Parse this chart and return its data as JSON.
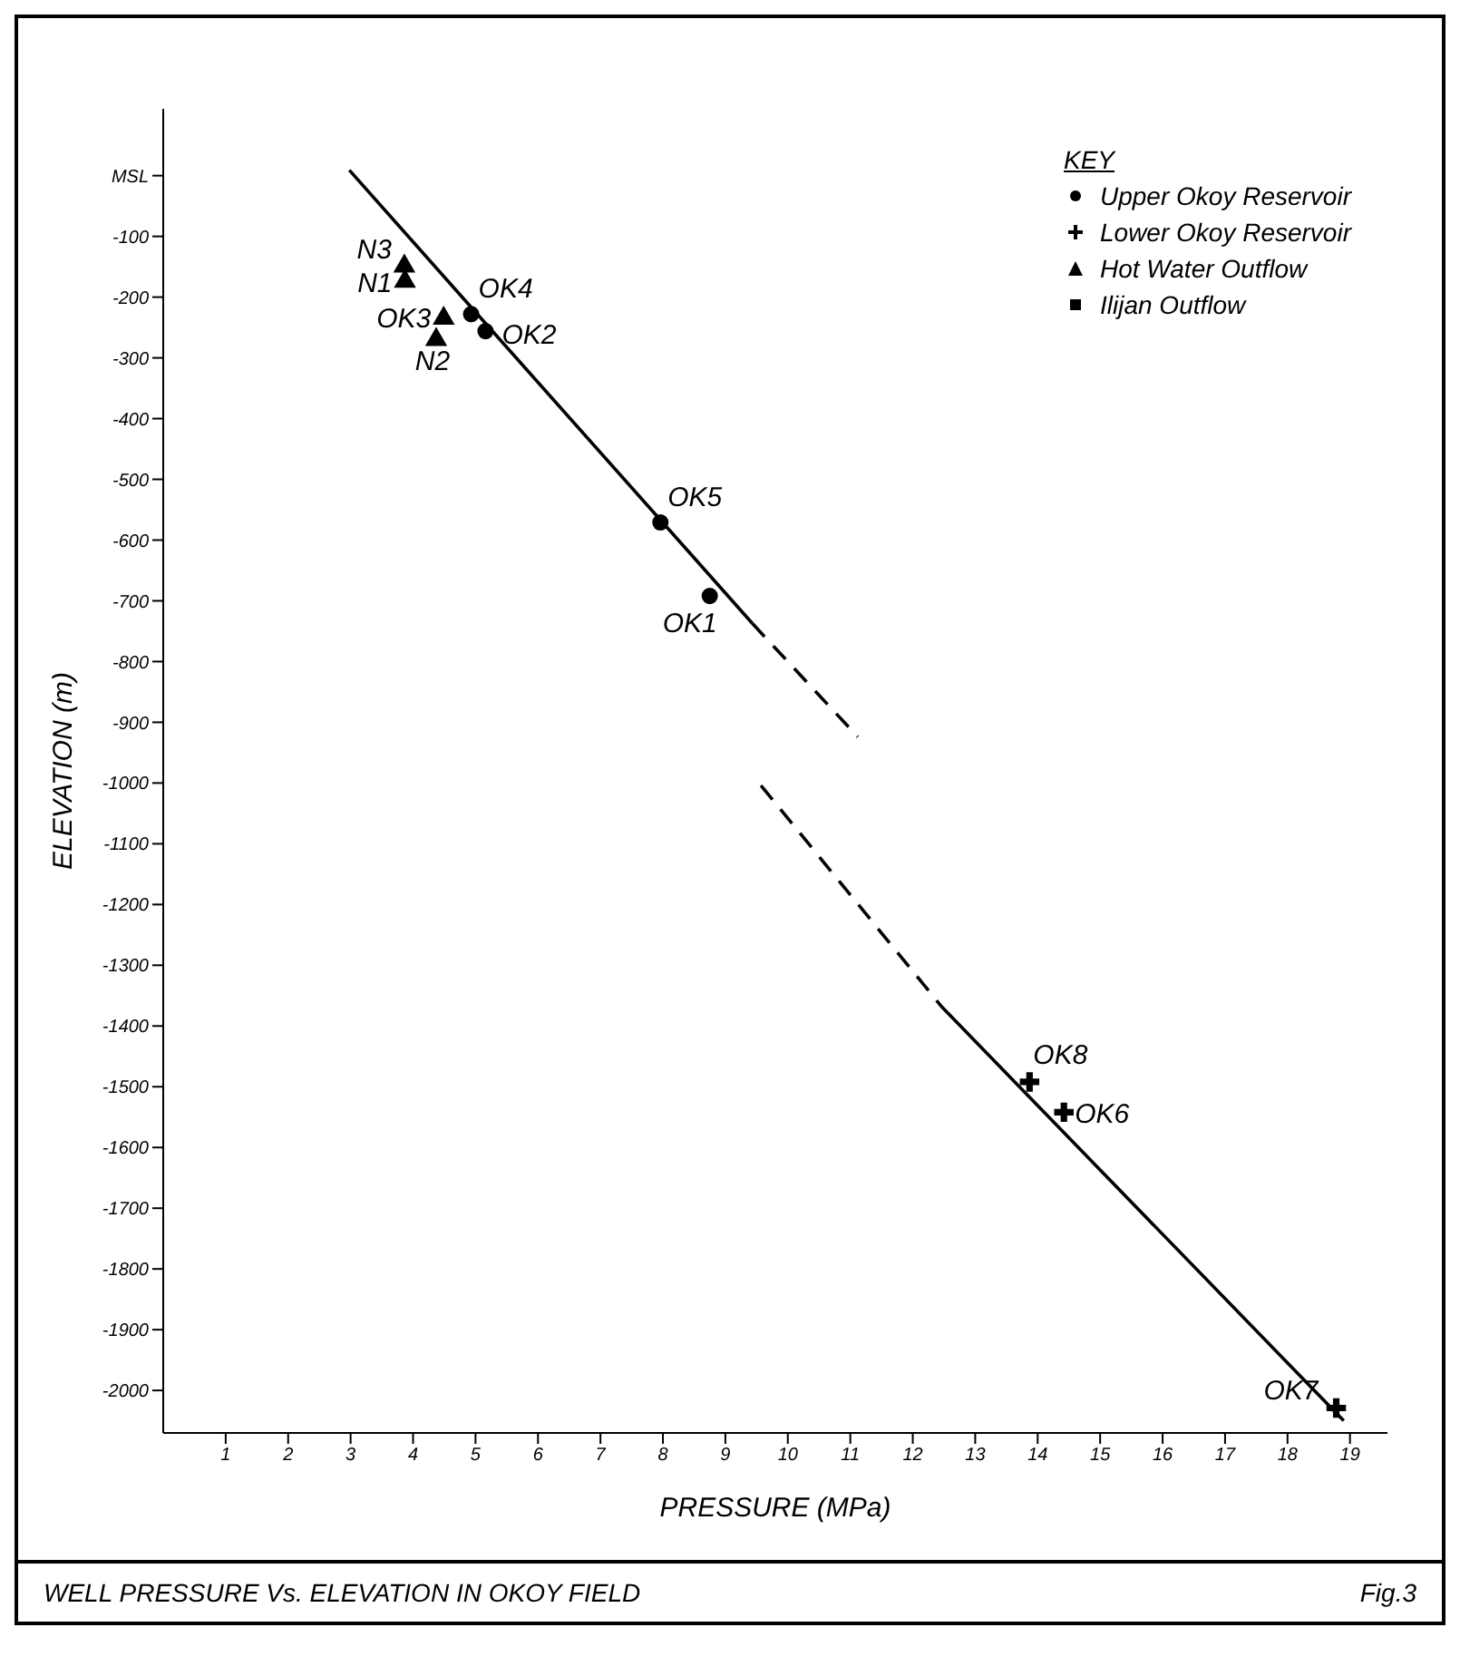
{
  "chart_data": {
    "type": "scatter",
    "xlabel": "PRESSURE (MPa)",
    "ylabel": "ELEVATION (m)",
    "legend_title": "KEY",
    "legend": "top right",
    "grid": false,
    "xlim": [
      0,
      19.6
    ],
    "xticks": [
      1,
      2,
      3,
      4,
      5,
      6,
      7,
      8,
      9,
      10,
      11,
      12,
      13,
      14,
      15,
      16,
      17,
      18,
      19
    ],
    "ylim": [
      -2070,
      110
    ],
    "yticks": [
      {
        "value": 0,
        "label": "MSL"
      },
      -100,
      -200,
      -300,
      -400,
      -500,
      -600,
      -700,
      -800,
      -900,
      -1000,
      -1100,
      -1200,
      -1300,
      -1400,
      -1500,
      -1600,
      -1700,
      -1800,
      -1900,
      -2000
    ],
    "series": [
      {
        "name": "Upper Okoy Reservoir",
        "color": "#000000",
        "marker": "circle",
        "x": [
          4.93,
          5.16,
          7.96,
          8.75
        ],
        "values": [
          -228,
          -256,
          -571,
          -692
        ]
      },
      {
        "name": "Lower Okoy Reservoir",
        "color": "#000000",
        "marker": "cross",
        "x": [
          13.87,
          14.42,
          18.78
        ],
        "values": [
          -1492,
          -1542,
          -2029
        ]
      },
      {
        "name": "Hot Water Outflow",
        "color": "#000000",
        "marker": "triangle",
        "x": [
          3.86,
          3.87,
          4.49,
          4.37
        ],
        "values": [
          -149,
          -174,
          -235,
          -270
        ]
      },
      {
        "name": "Ilijan Outflow",
        "color": "#000000",
        "marker": "square"
      },
      {
        "type": "line",
        "color": "#000000",
        "line_style": "solid",
        "marker": "none",
        "x": [
          2.98,
          9.43
        ],
        "values": [
          9,
          -737
        ]
      },
      {
        "type": "line",
        "color": "#000000",
        "line_style": "dashed",
        "marker": "none",
        "x": [
          9.43,
          11.12
        ],
        "values": [
          -737,
          -924
        ]
      },
      {
        "type": "line",
        "color": "#000000",
        "line_style": "dashed",
        "marker": "none",
        "x": [
          9.57,
          12.47
        ],
        "values": [
          -1004,
          -1369
        ]
      },
      {
        "type": "line",
        "color": "#000000",
        "line_style": "solid",
        "marker": "none",
        "x": [
          12.47,
          18.9
        ],
        "values": [
          -1369,
          -2050
        ]
      }
    ],
    "annotations": [
      {
        "text": "N3",
        "x": 3.86,
        "y": -149
      },
      {
        "text": "N1",
        "x": 3.87,
        "y": -174
      },
      {
        "text": "OK3",
        "x": 4.49,
        "y": -235
      },
      {
        "text": "N2",
        "x": 4.37,
        "y": -270
      },
      {
        "text": "OK4",
        "x": 4.93,
        "y": -228
      },
      {
        "text": "OK2",
        "x": 5.16,
        "y": -256
      },
      {
        "text": "OK5",
        "x": 7.96,
        "y": -571
      },
      {
        "text": "OK1",
        "x": 8.75,
        "y": -692
      },
      {
        "text": "OK8",
        "x": 13.87,
        "y": -1492
      },
      {
        "text": "OK6",
        "x": 14.42,
        "y": -1542
      },
      {
        "text": "OK7",
        "x": 18.78,
        "y": -2029
      },
      "WELL PRESSURE Vs. ELEVATION IN OKOY FIELD",
      "Fig.3"
    ]
  }
}
